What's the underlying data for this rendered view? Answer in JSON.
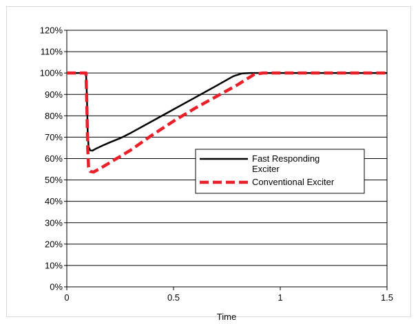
{
  "chart_data": {
    "type": "line",
    "title": "",
    "xlabel": "Time",
    "ylabel": "",
    "xlim": [
      0,
      1.5
    ],
    "ylim": [
      0,
      1.2
    ],
    "x_ticks": [
      "0",
      "0.5",
      "1",
      "1.5"
    ],
    "y_ticks": [
      "0%",
      "10%",
      "20%",
      "30%",
      "40%",
      "50%",
      "60%",
      "70%",
      "80%",
      "90%",
      "100%",
      "110%",
      "120%"
    ],
    "grid": "horizontal",
    "legend_position": "center-right",
    "series": [
      {
        "name": "Fast Responding Exciter",
        "color": "#000000",
        "style": "solid",
        "points": [
          [
            0,
            1.0
          ],
          [
            0.09,
            1.0
          ],
          [
            0.094,
            0.9
          ],
          [
            0.098,
            0.72
          ],
          [
            0.102,
            0.655
          ],
          [
            0.11,
            0.638
          ],
          [
            0.12,
            0.637
          ],
          [
            0.14,
            0.648
          ],
          [
            0.17,
            0.662
          ],
          [
            0.2,
            0.675
          ],
          [
            0.25,
            0.695
          ],
          [
            0.3,
            0.72
          ],
          [
            0.4,
            0.775
          ],
          [
            0.5,
            0.83
          ],
          [
            0.6,
            0.885
          ],
          [
            0.7,
            0.94
          ],
          [
            0.78,
            0.985
          ],
          [
            0.82,
            0.998
          ],
          [
            0.86,
            1.0
          ],
          [
            1.5,
            1.0
          ]
        ]
      },
      {
        "name": "Conventional Exciter",
        "color": "#e8202a",
        "style": "dashed",
        "points": [
          [
            0,
            1.0
          ],
          [
            0.09,
            1.0
          ],
          [
            0.094,
            0.85
          ],
          [
            0.098,
            0.65
          ],
          [
            0.102,
            0.56
          ],
          [
            0.11,
            0.54
          ],
          [
            0.125,
            0.537
          ],
          [
            0.14,
            0.545
          ],
          [
            0.17,
            0.562
          ],
          [
            0.2,
            0.58
          ],
          [
            0.3,
            0.64
          ],
          [
            0.4,
            0.71
          ],
          [
            0.5,
            0.775
          ],
          [
            0.6,
            0.835
          ],
          [
            0.7,
            0.89
          ],
          [
            0.8,
            0.945
          ],
          [
            0.88,
            0.995
          ],
          [
            0.92,
            1.0
          ],
          [
            1.5,
            1.0
          ]
        ]
      }
    ],
    "legend_labels": [
      {
        "lines": [
          "Fast Responding",
          "Exciter"
        ]
      },
      {
        "lines": [
          "Conventional Exciter"
        ]
      }
    ]
  }
}
